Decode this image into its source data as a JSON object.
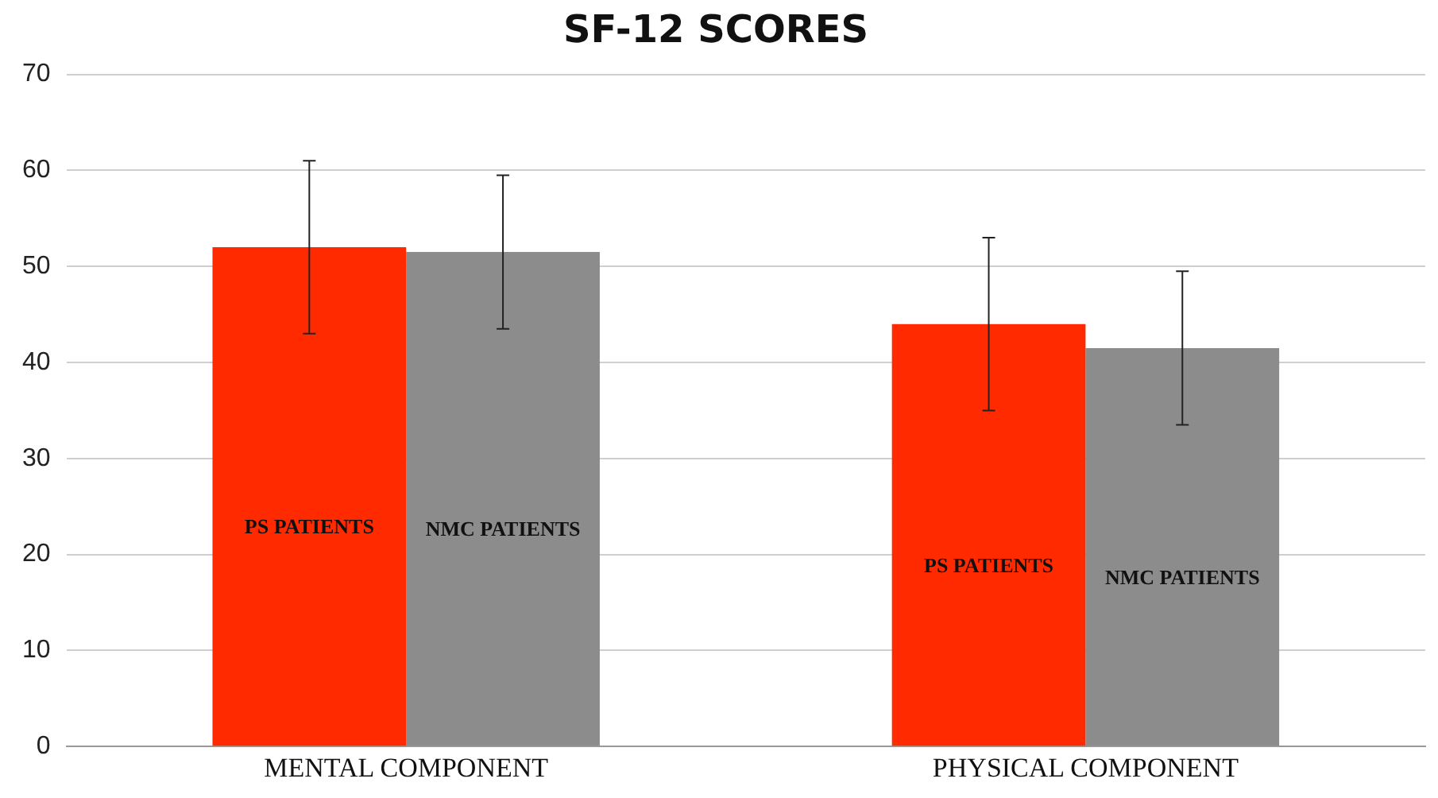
{
  "chart_data": {
    "type": "bar",
    "title": "SF-12 SCORES",
    "categories": [
      "MENTAL COMPONENT",
      "PHYSICAL COMPONENT"
    ],
    "series": [
      {
        "name": "PS PATIENTS",
        "color": "#ff2a00",
        "values": [
          52,
          44
        ],
        "errors": [
          9,
          9
        ]
      },
      {
        "name": "NMC PATIENTS",
        "color": "#8c8c8c",
        "values": [
          51.5,
          41.5
        ],
        "errors": [
          8,
          8
        ]
      }
    ],
    "ylim": [
      0,
      70
    ],
    "yticks": [
      0,
      10,
      20,
      30,
      40,
      50,
      60,
      70
    ],
    "grid": "y",
    "legend": false
  }
}
